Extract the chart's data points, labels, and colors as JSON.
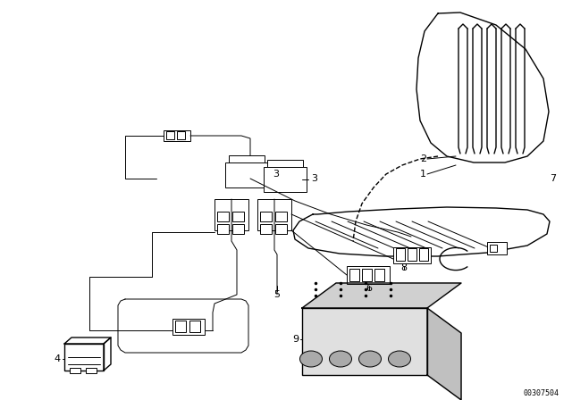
{
  "bg_color": "#ffffff",
  "line_color": "#000000",
  "lw": 1.0,
  "tlw": 0.7,
  "fig_width": 6.4,
  "fig_height": 4.48,
  "dpi": 100,
  "part_number": "00307504"
}
